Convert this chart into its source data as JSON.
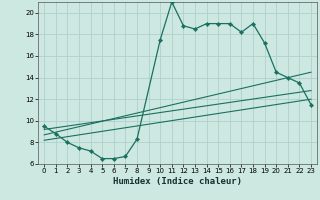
{
  "xlabel": "Humidex (Indice chaleur)",
  "background_color": "#cce8e0",
  "grid_color": "#b0d0cc",
  "line_color": "#1a7060",
  "xlim": [
    -0.5,
    23.5
  ],
  "ylim": [
    6,
    21
  ],
  "xticks": [
    0,
    1,
    2,
    3,
    4,
    5,
    6,
    7,
    8,
    9,
    10,
    11,
    12,
    13,
    14,
    15,
    16,
    17,
    18,
    19,
    20,
    21,
    22,
    23
  ],
  "yticks": [
    6,
    8,
    10,
    12,
    14,
    16,
    18,
    20
  ],
  "main_line": {
    "x": [
      0,
      1,
      2,
      3,
      4,
      5,
      6,
      7,
      8,
      10,
      11,
      12,
      13,
      14,
      15,
      16,
      17,
      18,
      19,
      20,
      21,
      22,
      23
    ],
    "y": [
      9.5,
      8.8,
      8.0,
      7.5,
      7.2,
      6.5,
      6.5,
      6.7,
      8.3,
      17.5,
      21.0,
      18.8,
      18.5,
      19.0,
      19.0,
      19.0,
      18.2,
      19.0,
      17.2,
      14.5,
      14.0,
      13.5,
      11.5
    ]
  },
  "line2": {
    "x": [
      0,
      23
    ],
    "y": [
      8.2,
      12.0
    ]
  },
  "line3": {
    "x": [
      0,
      23
    ],
    "y": [
      8.7,
      14.5
    ]
  },
  "line4": {
    "x": [
      0,
      23
    ],
    "y": [
      9.2,
      12.8
    ]
  }
}
